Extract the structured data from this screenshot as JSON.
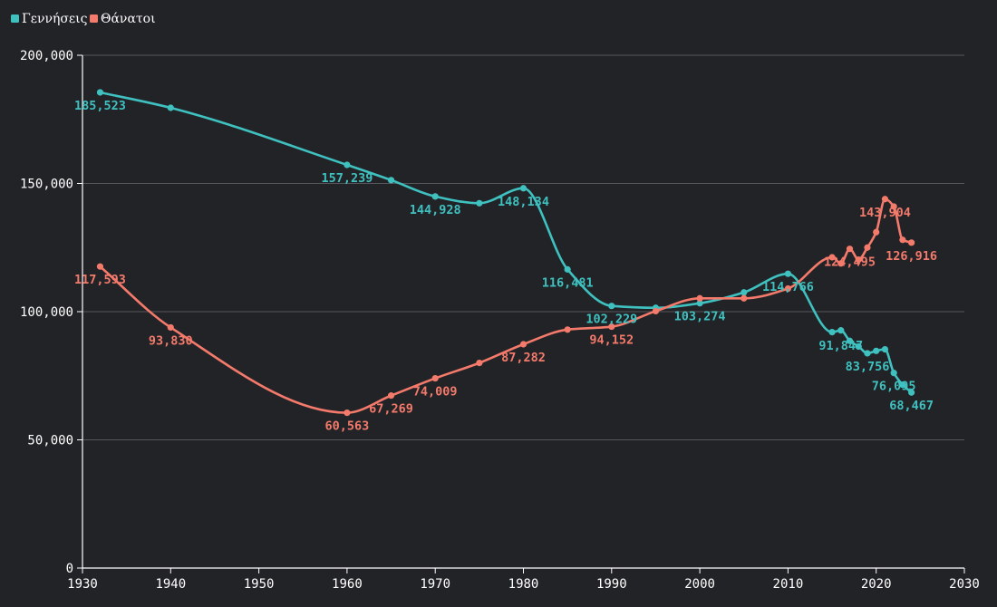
{
  "chart_data": {
    "type": "line",
    "legend": {
      "placement": "top-left"
    },
    "xlim": [
      1930,
      2030
    ],
    "ylim": [
      0,
      200000
    ],
    "grid": true,
    "x_ticks": [
      "1930",
      "1940",
      "1950",
      "1960",
      "1970",
      "1980",
      "1990",
      "2000",
      "2010",
      "2020",
      "2030"
    ],
    "y_ticks": [
      "0",
      "50,000",
      "100,000",
      "150,000",
      "200,000"
    ],
    "series": [
      {
        "name": "Γεννήσεις",
        "color": "#3fc1c0",
        "points": [
          {
            "x": 1932,
            "y": 185523,
            "label": "185,523"
          },
          {
            "x": 1940,
            "y": 179500
          },
          {
            "x": 1960,
            "y": 157239,
            "label": "157,239"
          },
          {
            "x": 1965,
            "y": 151300
          },
          {
            "x": 1970,
            "y": 144928,
            "label": "144,928"
          },
          {
            "x": 1975,
            "y": 142300
          },
          {
            "x": 1980,
            "y": 148134,
            "label": "148,134"
          },
          {
            "x": 1985,
            "y": 116481,
            "label": "116,481"
          },
          {
            "x": 1990,
            "y": 102229,
            "label": "102,229"
          },
          {
            "x": 1995,
            "y": 101500
          },
          {
            "x": 2000,
            "y": 103274,
            "label": "103,274"
          },
          {
            "x": 2005,
            "y": 107500
          },
          {
            "x": 2010,
            "y": 114766,
            "label": "114,766"
          },
          {
            "x": 2015,
            "y": 92000
          },
          {
            "x": 2016,
            "y": 92700
          },
          {
            "x": 2017,
            "y": 88600
          },
          {
            "x": 2018,
            "y": 86400
          },
          {
            "x": 2019,
            "y": 83756,
            "label": "83,756"
          },
          {
            "x": 2020,
            "y": 84700
          },
          {
            "x": 2021,
            "y": 85300
          },
          {
            "x": 2022,
            "y": 76095,
            "label": "76,095"
          },
          {
            "x": 2023,
            "y": 71500
          },
          {
            "x": 2024,
            "y": 68467,
            "label": "68,467"
          }
        ],
        "extra_labels": [
          {
            "x": 2016,
            "y": 91847,
            "label": "91,847"
          }
        ]
      },
      {
        "name": "Θάνατοι",
        "color": "#f47a6b",
        "points": [
          {
            "x": 1932,
            "y": 117593,
            "label": "117,593"
          },
          {
            "x": 1940,
            "y": 93830,
            "label": "93,830"
          },
          {
            "x": 1960,
            "y": 60563,
            "label": "60,563"
          },
          {
            "x": 1965,
            "y": 67269,
            "label": "67,269"
          },
          {
            "x": 1970,
            "y": 74009,
            "label": "74,009"
          },
          {
            "x": 1975,
            "y": 80000
          },
          {
            "x": 1980,
            "y": 87282,
            "label": "87,282"
          },
          {
            "x": 1985,
            "y": 93000
          },
          {
            "x": 1990,
            "y": 94152,
            "label": "94,152"
          },
          {
            "x": 1995,
            "y": 100200
          },
          {
            "x": 2000,
            "y": 105200
          },
          {
            "x": 2005,
            "y": 105200
          },
          {
            "x": 2010,
            "y": 109000
          },
          {
            "x": 2015,
            "y": 121200
          },
          {
            "x": 2016,
            "y": 118800
          },
          {
            "x": 2017,
            "y": 124495,
            "label": "124,495"
          },
          {
            "x": 2018,
            "y": 120300
          },
          {
            "x": 2019,
            "y": 125000
          },
          {
            "x": 2020,
            "y": 131000
          },
          {
            "x": 2021,
            "y": 143904,
            "label": "143,904"
          },
          {
            "x": 2022,
            "y": 141000
          },
          {
            "x": 2023,
            "y": 128000
          },
          {
            "x": 2024,
            "y": 126916,
            "label": "126,916"
          }
        ]
      }
    ]
  }
}
